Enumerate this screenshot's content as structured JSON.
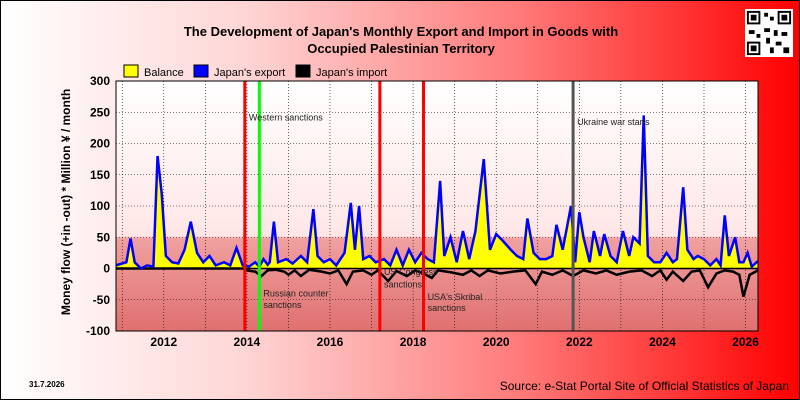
{
  "chart_data": {
    "type": "area",
    "title": "The Development of Japan's Monthly Export and Import in Goods with",
    "title_line2": "Occupied Palestinian Territory",
    "ylabel": "Money flow (+in -out) * Million ¥ / month",
    "ylim": [
      -100,
      300
    ],
    "yticks": [
      -100,
      -50,
      0,
      50,
      100,
      150,
      200,
      250,
      300
    ],
    "xlim": [
      2010.85,
      2026.3
    ],
    "xticks": [
      "2012",
      "2014",
      "2016",
      "2018",
      "2020",
      "2022",
      "2024",
      "2026"
    ],
    "grid": true,
    "legend_position": "top-left",
    "legend": [
      "Balance",
      "Japan's export",
      "Japan's import"
    ],
    "series": [
      {
        "name": "Balance",
        "color": "#ffff00"
      },
      {
        "name": "Japan's export",
        "color": "#0000ff"
      },
      {
        "name": "Japan's import",
        "color": "#000000"
      }
    ],
    "export_points": [
      [
        2010.85,
        5
      ],
      [
        2011.1,
        10
      ],
      [
        2011.2,
        48
      ],
      [
        2011.3,
        10
      ],
      [
        2011.45,
        0
      ],
      [
        2011.6,
        5
      ],
      [
        2011.75,
        3
      ],
      [
        2011.85,
        180
      ],
      [
        2011.95,
        120
      ],
      [
        2012.05,
        20
      ],
      [
        2012.2,
        10
      ],
      [
        2012.35,
        8
      ],
      [
        2012.5,
        30
      ],
      [
        2012.65,
        75
      ],
      [
        2012.8,
        25
      ],
      [
        2012.95,
        10
      ],
      [
        2013.1,
        20
      ],
      [
        2013.25,
        5
      ],
      [
        2013.45,
        10
      ],
      [
        2013.6,
        5
      ],
      [
        2013.75,
        33
      ],
      [
        2013.9,
        5
      ],
      [
        2014.05,
        3
      ],
      [
        2014.2,
        10
      ],
      [
        2014.3,
        3
      ],
      [
        2014.4,
        15
      ],
      [
        2014.5,
        6
      ],
      [
        2014.55,
        10
      ],
      [
        2014.65,
        75
      ],
      [
        2014.75,
        10
      ],
      [
        2014.95,
        15
      ],
      [
        2015.1,
        8
      ],
      [
        2015.3,
        20
      ],
      [
        2015.45,
        10
      ],
      [
        2015.6,
        95
      ],
      [
        2015.7,
        20
      ],
      [
        2015.85,
        10
      ],
      [
        2016.0,
        15
      ],
      [
        2016.15,
        5
      ],
      [
        2016.35,
        25
      ],
      [
        2016.5,
        105
      ],
      [
        2016.6,
        30
      ],
      [
        2016.7,
        100
      ],
      [
        2016.8,
        15
      ],
      [
        2016.95,
        20
      ],
      [
        2017.1,
        10
      ],
      [
        2017.3,
        15
      ],
      [
        2017.45,
        5
      ],
      [
        2017.6,
        30
      ],
      [
        2017.75,
        5
      ],
      [
        2017.9,
        30
      ],
      [
        2018.05,
        10
      ],
      [
        2018.2,
        25
      ],
      [
        2018.35,
        15
      ],
      [
        2018.5,
        10
      ],
      [
        2018.65,
        140
      ],
      [
        2018.75,
        20
      ],
      [
        2018.9,
        50
      ],
      [
        2019.05,
        10
      ],
      [
        2019.2,
        60
      ],
      [
        2019.35,
        15
      ],
      [
        2019.5,
        60
      ],
      [
        2019.7,
        175
      ],
      [
        2019.85,
        30
      ],
      [
        2020.0,
        55
      ],
      [
        2020.15,
        45
      ],
      [
        2020.35,
        30
      ],
      [
        2020.5,
        20
      ],
      [
        2020.65,
        15
      ],
      [
        2020.75,
        80
      ],
      [
        2020.9,
        25
      ],
      [
        2021.05,
        15
      ],
      [
        2021.2,
        15
      ],
      [
        2021.35,
        20
      ],
      [
        2021.45,
        70
      ],
      [
        2021.6,
        30
      ],
      [
        2021.8,
        100
      ],
      [
        2021.9,
        10
      ],
      [
        2022.0,
        90
      ],
      [
        2022.1,
        50
      ],
      [
        2022.25,
        10
      ],
      [
        2022.35,
        60
      ],
      [
        2022.5,
        20
      ],
      [
        2022.6,
        55
      ],
      [
        2022.75,
        20
      ],
      [
        2022.9,
        10
      ],
      [
        2023.05,
        60
      ],
      [
        2023.2,
        20
      ],
      [
        2023.3,
        50
      ],
      [
        2023.45,
        40
      ],
      [
        2023.55,
        245
      ],
      [
        2023.65,
        20
      ],
      [
        2023.8,
        10
      ],
      [
        2023.95,
        10
      ],
      [
        2024.1,
        25
      ],
      [
        2024.25,
        10
      ],
      [
        2024.35,
        15
      ],
      [
        2024.5,
        130
      ],
      [
        2024.6,
        30
      ],
      [
        2024.75,
        15
      ],
      [
        2024.85,
        20
      ],
      [
        2025.0,
        15
      ],
      [
        2025.15,
        5
      ],
      [
        2025.3,
        15
      ],
      [
        2025.4,
        5
      ],
      [
        2025.5,
        85
      ],
      [
        2025.6,
        20
      ],
      [
        2025.75,
        50
      ],
      [
        2025.85,
        10
      ],
      [
        2025.95,
        10
      ],
      [
        2026.05,
        25
      ],
      [
        2026.15,
        3
      ],
      [
        2026.3,
        12
      ]
    ],
    "import_points": [
      [
        2010.85,
        0
      ],
      [
        2013.9,
        0
      ],
      [
        2014.0,
        -3
      ],
      [
        2014.2,
        -5
      ],
      [
        2014.35,
        -12
      ],
      [
        2014.5,
        -3
      ],
      [
        2014.7,
        -2
      ],
      [
        2014.9,
        -5
      ],
      [
        2015.0,
        -10
      ],
      [
        2015.15,
        -3
      ],
      [
        2015.3,
        -12
      ],
      [
        2015.5,
        -2
      ],
      [
        2015.8,
        -5
      ],
      [
        2016.0,
        -8
      ],
      [
        2016.2,
        -3
      ],
      [
        2016.4,
        -25
      ],
      [
        2016.55,
        -5
      ],
      [
        2016.8,
        -3
      ],
      [
        2017.0,
        -10
      ],
      [
        2017.15,
        -3
      ],
      [
        2017.4,
        -20
      ],
      [
        2017.6,
        -4
      ],
      [
        2017.85,
        -12
      ],
      [
        2018.05,
        -3
      ],
      [
        2018.25,
        -8
      ],
      [
        2018.45,
        -15
      ],
      [
        2018.6,
        -3
      ],
      [
        2018.9,
        -6
      ],
      [
        2019.2,
        -10
      ],
      [
        2019.4,
        -3
      ],
      [
        2019.6,
        -12
      ],
      [
        2019.8,
        -3
      ],
      [
        2020.1,
        -8
      ],
      [
        2020.4,
        -5
      ],
      [
        2020.7,
        -3
      ],
      [
        2020.95,
        -25
      ],
      [
        2021.1,
        -5
      ],
      [
        2021.35,
        -10
      ],
      [
        2021.6,
        -3
      ],
      [
        2021.85,
        -12
      ],
      [
        2022.1,
        -3
      ],
      [
        2022.4,
        -8
      ],
      [
        2022.65,
        -3
      ],
      [
        2022.9,
        -10
      ],
      [
        2023.2,
        -5
      ],
      [
        2023.5,
        -3
      ],
      [
        2023.75,
        -12
      ],
      [
        2023.95,
        -3
      ],
      [
        2024.1,
        -18
      ],
      [
        2024.25,
        -5
      ],
      [
        2024.5,
        -20
      ],
      [
        2024.7,
        -5
      ],
      [
        2024.9,
        -3
      ],
      [
        2025.1,
        -30
      ],
      [
        2025.3,
        -8
      ],
      [
        2025.5,
        -3
      ],
      [
        2025.7,
        -5
      ],
      [
        2025.85,
        -10
      ],
      [
        2025.95,
        -45
      ],
      [
        2026.1,
        -10
      ],
      [
        2026.3,
        -3
      ]
    ],
    "vertical_markers": [
      {
        "x": 2013.95,
        "color": "#ff0000"
      },
      {
        "x": 2014.3,
        "color": "#00ff00"
      },
      {
        "x": 2017.2,
        "color": "#ff0000"
      },
      {
        "x": 2018.25,
        "color": "#ff0000"
      },
      {
        "x": 2021.85,
        "color": "#555555"
      }
    ],
    "annotations": [
      {
        "text": "Western sanctions",
        "x": 2014.0,
        "y": 237
      },
      {
        "text": "Russian counter",
        "x": 2014.35,
        "y": -45
      },
      {
        "text": "sanctions",
        "x": 2014.35,
        "y": -63
      },
      {
        "text": "Ukraine war starts",
        "x": 2021.9,
        "y": 230
      },
      {
        "text": "US Congress",
        "x": 2017.25,
        "y": -10
      },
      {
        "text": "sanctions",
        "x": 2017.25,
        "y": -30
      },
      {
        "text": "USA's Skribal",
        "x": 2018.3,
        "y": -50
      },
      {
        "text": "sanctions",
        "x": 2018.3,
        "y": -68
      }
    ]
  },
  "datestamp": "31.7.2026",
  "source": "Source: e-Stat Portal Site of Official Statistics of Japan"
}
